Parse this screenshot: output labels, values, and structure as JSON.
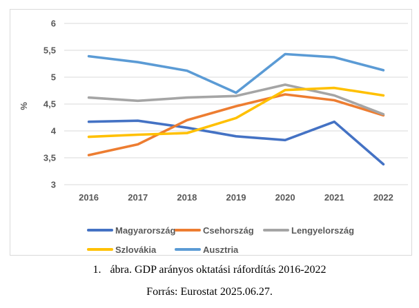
{
  "figure": {
    "caption_number": "1.",
    "caption_text": "ábra. GDP arányos oktatási ráfordítás 2016-2022",
    "source_text": "Forrás: Eurostat 2025.06.27."
  },
  "chart_data": {
    "type": "line",
    "title": "",
    "xlabel": "",
    "ylabel": "%",
    "categories": [
      "2016",
      "2017",
      "2018",
      "2019",
      "2020",
      "2021",
      "2022"
    ],
    "series": [
      {
        "name": "Magyarország",
        "color": "#4472C4",
        "values": [
          4.17,
          4.19,
          4.06,
          3.9,
          3.83,
          4.17,
          3.38
        ]
      },
      {
        "name": "Csehország",
        "color": "#ED7D31",
        "values": [
          3.55,
          3.75,
          4.2,
          4.46,
          4.68,
          4.57,
          4.29
        ]
      },
      {
        "name": "Lengyelország",
        "color": "#A5A5A5",
        "values": [
          4.62,
          4.56,
          4.62,
          4.65,
          4.86,
          4.66,
          4.31
        ]
      },
      {
        "name": "Szlovákia",
        "color": "#FFC000",
        "values": [
          3.89,
          3.93,
          3.96,
          4.24,
          4.76,
          4.8,
          4.66
        ]
      },
      {
        "name": "Ausztria",
        "color": "#5B9BD5",
        "values": [
          5.39,
          5.28,
          5.12,
          4.71,
          5.43,
          5.37,
          5.13
        ]
      }
    ],
    "ylim": [
      3,
      6
    ],
    "ytick_step": 0.5,
    "ytick_labels": [
      "3",
      "3,5",
      "4",
      "4,5",
      "5",
      "5,5",
      "6"
    ],
    "grid": true,
    "legend_position": "bottom",
    "legend_rows": [
      [
        "Magyarország",
        "Csehország",
        "Lengyelország"
      ],
      [
        "Szlovákia",
        "Ausztria"
      ]
    ]
  },
  "colors": {
    "axis_text": "#595959",
    "gridline": "#D9D9D9",
    "chart_border": "#D9D9D9",
    "background": "#FFFFFF"
  }
}
